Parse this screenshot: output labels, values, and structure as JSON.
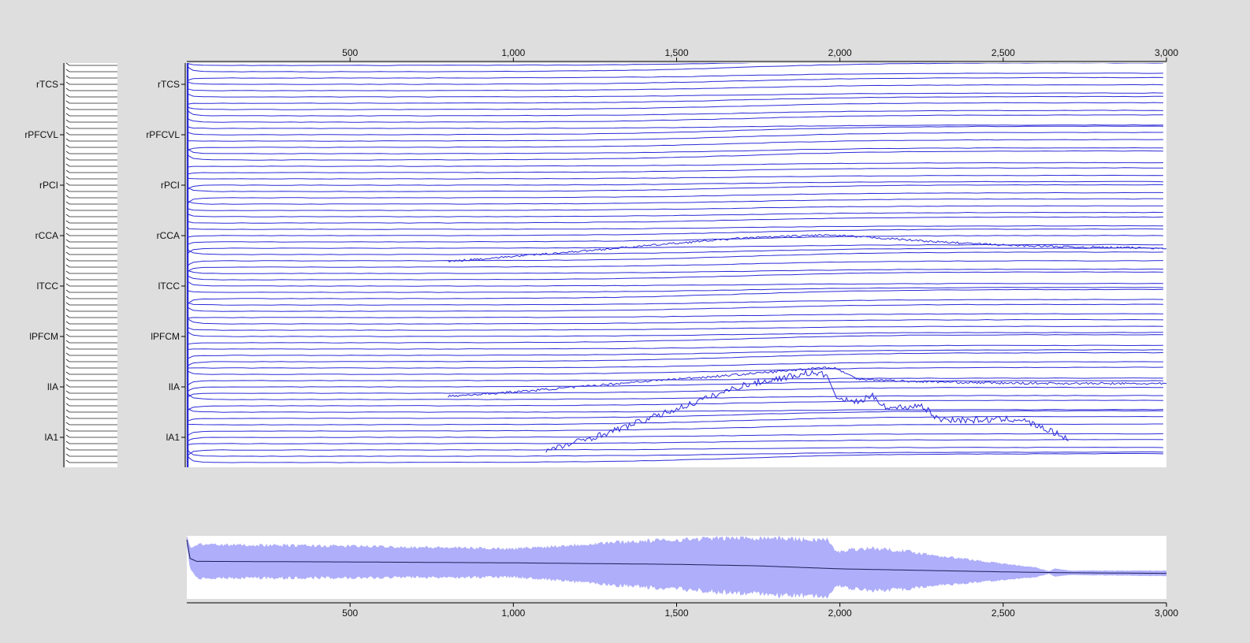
{
  "chart_data": {
    "type": "line",
    "title": "",
    "xlabel": "",
    "ylabel": "",
    "x_axis": {
      "range": [
        0,
        3000
      ],
      "tick_values": [
        500,
        1000,
        1500,
        2000,
        2500,
        3000
      ],
      "tick_labels": [
        "500",
        "1,000",
        "1,500",
        "2,000",
        "2,500",
        "3,000"
      ]
    },
    "channel_count": 64,
    "channel_labels": [
      "rTCS",
      "rPFCVL",
      "rPCI",
      "rCCA",
      "lTCC",
      "lPFCM",
      "lIA",
      "lA1"
    ],
    "highlighted_traces": [
      {
        "name": "",
        "x": [
          1100,
          1300,
          1500,
          1700,
          1900,
          1960,
          1990,
          2050,
          2100,
          2150,
          2200,
          2250,
          2300,
          2400,
          2550,
          2600,
          2700
        ],
        "y": [
          -34.2,
          -31.1,
          -27.5,
          -23.8,
          -21.8,
          -22.1,
          -25.8,
          -26.4,
          -25.5,
          -27.4,
          -27.2,
          -26.9,
          -29.1,
          -29.3,
          -29.1,
          -30.1,
          -32.2
        ]
      },
      {
        "name": "",
        "x": [
          800,
          1000,
          1200,
          1400,
          1600,
          1800,
          1950,
          1990,
          2050,
          2200,
          2500,
          3000
        ],
        "y": [
          -25.5,
          -24.8,
          -24.0,
          -23.1,
          -22.4,
          -21.6,
          -20.9,
          -21.1,
          -22.7,
          -23.1,
          -23.4,
          -23.5
        ]
      },
      {
        "name": "",
        "x": [
          800,
          1000,
          1200,
          1500,
          1700,
          1950,
          2100,
          2300,
          2500,
          2700,
          3000
        ],
        "y": [
          -4.1,
          -3.3,
          -2.5,
          -1.2,
          -0.4,
          0.1,
          -0.3,
          -1.0,
          -1.5,
          -1.8,
          -2.0
        ]
      }
    ],
    "overview": {
      "type": "area",
      "x_axis": {
        "range": [
          0,
          3000
        ],
        "tick_values": [
          500,
          1000,
          1500,
          2000,
          2500,
          3000
        ],
        "tick_labels": [
          "500",
          "1,000",
          "1,500",
          "2,000",
          "2,500",
          "3,000"
        ]
      },
      "mean": {
        "x": [
          0,
          10,
          30,
          500,
          1000,
          1500,
          1750,
          2000,
          2250,
          2500,
          2700,
          3000
        ],
        "y": [
          0.92,
          0.3,
          0.2,
          0.18,
          0.15,
          0.1,
          0.05,
          -0.05,
          -0.1,
          -0.15,
          -0.18,
          -0.2
        ]
      },
      "envelope": {
        "x": [
          0,
          30,
          500,
          1000,
          1100,
          1300,
          1500,
          1650,
          1800,
          1900,
          1960,
          1990,
          2030,
          2100,
          2200,
          2300,
          2500,
          2600,
          2640,
          2660,
          2700,
          3000
        ],
        "half_width": [
          0.25,
          0.62,
          0.58,
          0.52,
          0.6,
          0.78,
          0.9,
          1.0,
          1.05,
          1.02,
          1.06,
          0.6,
          0.72,
          0.78,
          0.7,
          0.55,
          0.3,
          0.18,
          0.05,
          0.15,
          0.08,
          0.1
        ]
      },
      "y_range": [
        -1.05,
        1.05
      ]
    }
  }
}
